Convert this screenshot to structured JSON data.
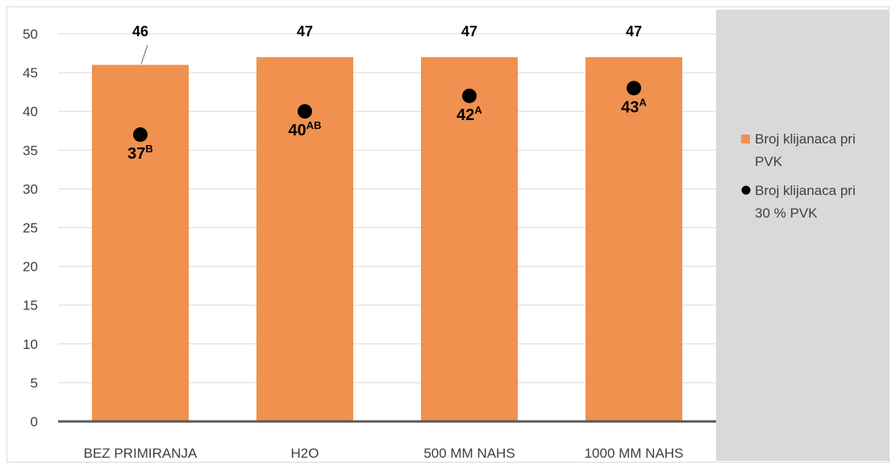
{
  "chart_data": {
    "type": "bar",
    "categories": [
      "BEZ PRIMIRANJA",
      "H2O",
      "500 MM NAHS",
      "1000 MM NAHS"
    ],
    "series": [
      {
        "name": "Broj klijanaca pri PVK",
        "kind": "bar",
        "color": "#f0914f",
        "values": [
          46,
          47,
          47,
          47
        ],
        "labels": [
          "46",
          "47",
          "47",
          "47"
        ]
      },
      {
        "name": "Broj klijanaca pri 30 % PVK",
        "kind": "scatter",
        "color": "#000000",
        "values": [
          37,
          40,
          42,
          43
        ],
        "labels": [
          "37",
          "40",
          "42",
          "43"
        ],
        "label_superscripts": [
          "B",
          "AB",
          "A",
          "A"
        ]
      }
    ],
    "ylim": [
      0,
      50
    ],
    "yticks": [
      "0",
      "5",
      "10",
      "15",
      "20",
      "25",
      "30",
      "35",
      "40",
      "45",
      "50"
    ],
    "grid": true,
    "legend_position": "right",
    "legend": [
      {
        "line1": "Broj klijanaca pri",
        "line2": "PVK",
        "marker": "square"
      },
      {
        "line1": "Broj klijanaca pri",
        "line2": "30 % PVK",
        "marker": "circle"
      }
    ],
    "title": "",
    "xlabel": "",
    "ylabel": ""
  }
}
